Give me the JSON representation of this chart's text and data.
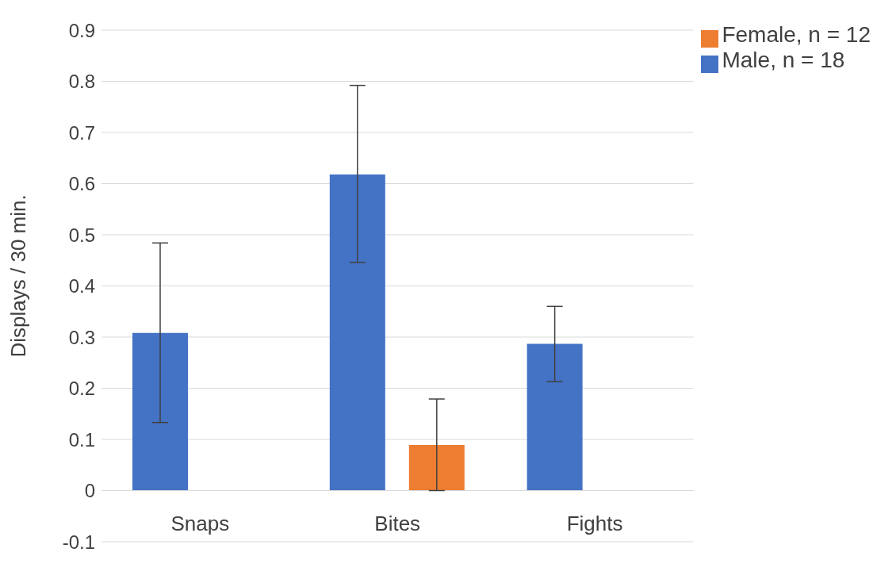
{
  "chart_data": {
    "type": "bar",
    "ylabel": "Displays / 30 min.",
    "categories": [
      "Snaps",
      "Bites",
      "Fights"
    ],
    "series": [
      {
        "name": "Male, n = 18",
        "color": "#4472c4",
        "values": [
          0.308,
          0.618,
          0.287
        ],
        "errors": [
          [
            0.133,
            0.484
          ],
          [
            0.446,
            0.792
          ],
          [
            0.213,
            0.36
          ]
        ]
      },
      {
        "name": "Female, n = 12",
        "color": "#ed7d31",
        "values": [
          0,
          0.089,
          0
        ],
        "errors": [
          null,
          [
            0,
            0.179
          ],
          null
        ]
      }
    ],
    "ylim": [
      -0.1,
      0.9
    ],
    "yticks": [
      -0.1,
      0,
      0.1,
      0.2,
      0.3,
      0.4,
      0.5,
      0.6,
      0.7,
      0.8,
      0.9
    ],
    "grid": "y",
    "legend": "top right"
  }
}
